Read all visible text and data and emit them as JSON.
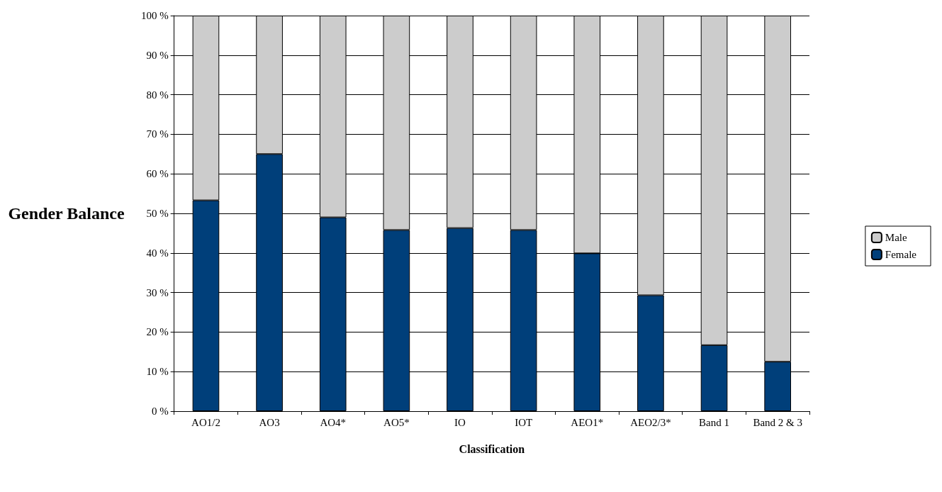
{
  "chart_data": {
    "type": "bar",
    "stacked": true,
    "xlabel": "Classification",
    "ylabel": "Gender Balance",
    "categories": [
      "AO1/2",
      "AO3",
      "AO4*",
      "AO5*",
      "IO",
      "IOT",
      "AEO1*",
      "AEO2/3*",
      "Band 1",
      "Band 2 & 3"
    ],
    "series": [
      {
        "name": "Female",
        "color": "#003f7a",
        "values": [
          53.3,
          65,
          49,
          45.8,
          46.3,
          45.8,
          39.9,
          29.3,
          16.7,
          12.5
        ]
      },
      {
        "name": "Male",
        "color": "#cccccc",
        "values": [
          46.7,
          35,
          51,
          54.2,
          53.7,
          54.2,
          60.1,
          70.7,
          83.3,
          87.5
        ]
      }
    ],
    "ylim": [
      0,
      100
    ],
    "yticks": [
      {
        "value": 0,
        "label": "0 %"
      },
      {
        "value": 10,
        "label": "10 %"
      },
      {
        "value": 20,
        "label": "20 %"
      },
      {
        "value": 30,
        "label": "30 %"
      },
      {
        "value": 40,
        "label": "40 %"
      },
      {
        "value": 50,
        "label": "50 %"
      },
      {
        "value": 60,
        "label": "60 %"
      },
      {
        "value": 70,
        "label": "70 %"
      },
      {
        "value": 80,
        "label": "80 %"
      },
      {
        "value": 90,
        "label": "90 %"
      },
      {
        "value": 100,
        "label": "100 %"
      }
    ],
    "grid": "y",
    "legend": "right"
  }
}
